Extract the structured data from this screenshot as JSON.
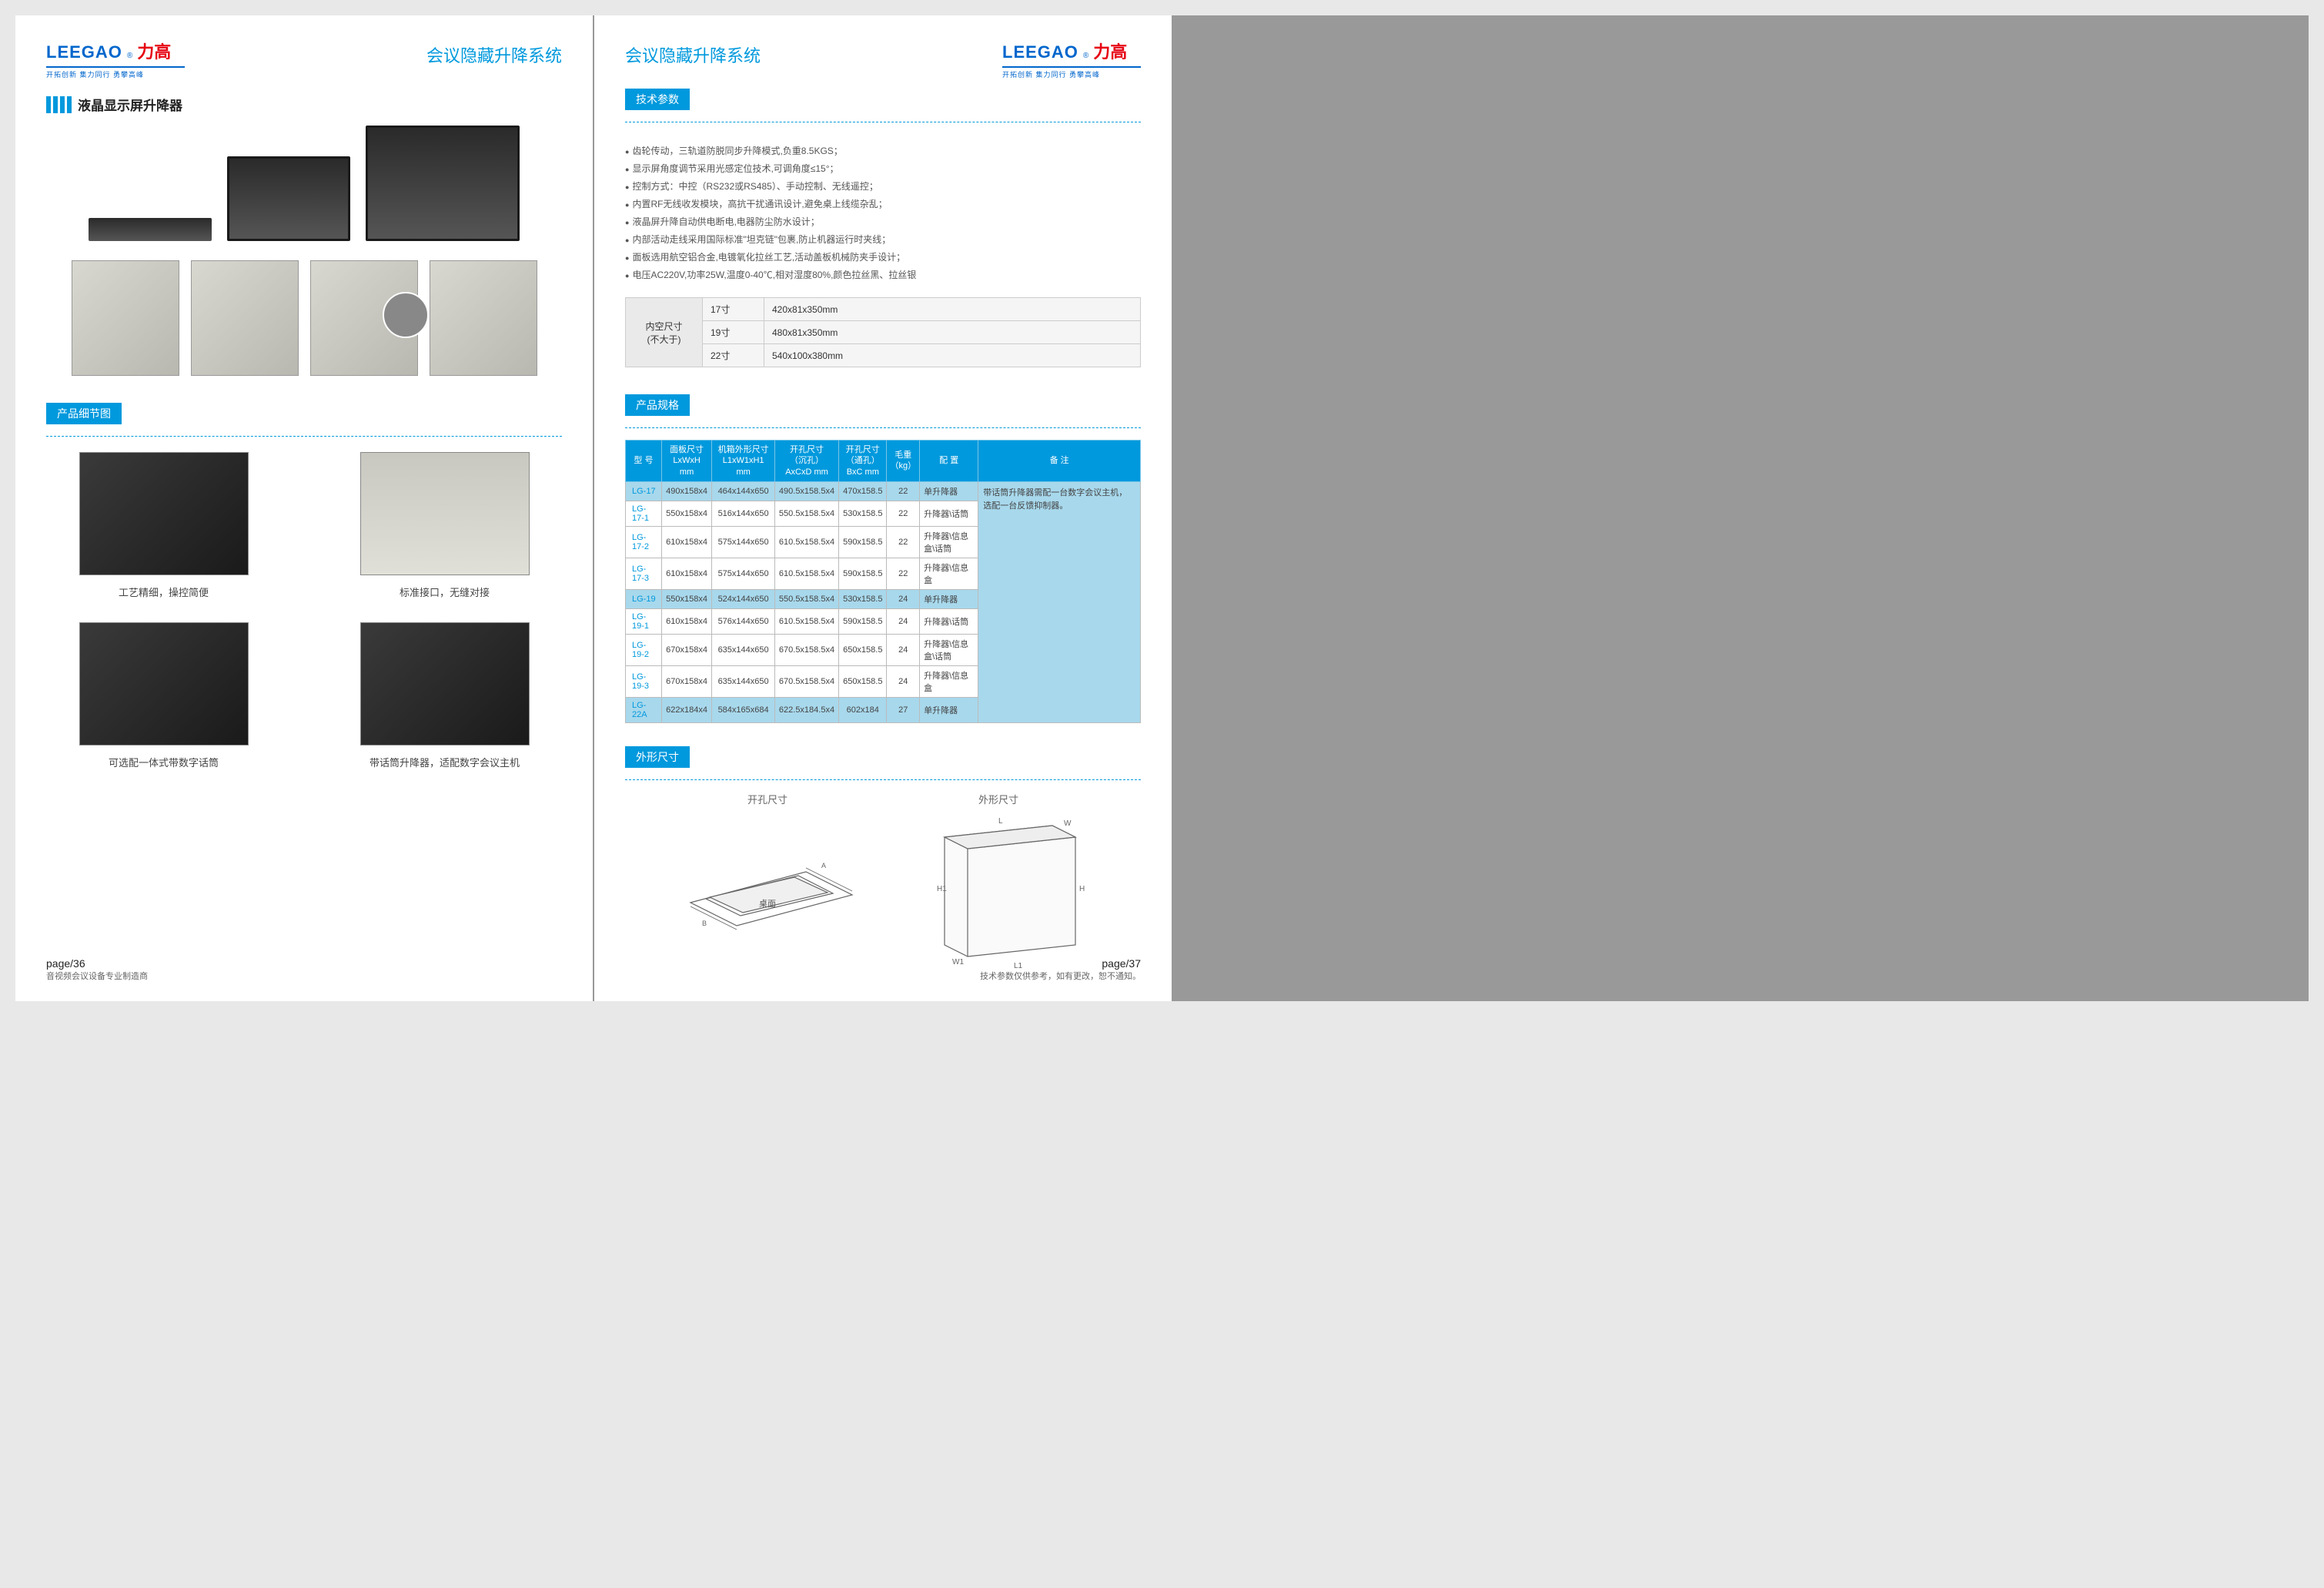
{
  "brand": {
    "en": "LEEGAO",
    "cn": "力高",
    "tagline": "开拓创新 集力同行 勇攀高峰"
  },
  "system_title": "会议隐藏升降系统",
  "left_page": {
    "heading": "液晶显示屏升降器",
    "section_detail": "产品细节图",
    "captions": {
      "c1": "工艺精细，操控简便",
      "c2": "标准接口，无缝对接",
      "c3": "可选配一体式带数字话筒",
      "c4": "带话筒升降器，适配数字会议主机"
    },
    "footer_page": "page/36",
    "footer_text": "音视频会议设备专业制造商"
  },
  "right_page": {
    "tech_title": "技术参数",
    "tech_specs": [
      "齿轮传动，三轨道防脱同步升降模式,负重8.5KGS；",
      "显示屏角度调节采用光感定位技术,可调角度≤15°；",
      "控制方式：中控（RS232或RS485）、手动控制、无线遥控；",
      "内置RF无线收发模块，高抗干扰通讯设计,避免桌上线缆杂乱；",
      "液晶屏升降自动供电断电,电器防尘防水设计；",
      "内部活动走线采用国际标准\"坦克链\"包裹,防止机器运行时夹线；",
      "面板选用航空铝合金,电镀氧化拉丝工艺,活动盖板机械防夹手设计；",
      "电压AC220V,功率25W,温度0-40℃,相对湿度80%,颜色拉丝黑、拉丝银"
    ],
    "size_label": "内空尺寸\n(不大于)",
    "size_rows": [
      {
        "inch": "17寸",
        "val": "420x81x350mm"
      },
      {
        "inch": "19寸",
        "val": "480x81x350mm"
      },
      {
        "inch": "22寸",
        "val": "540x100x380mm"
      }
    ],
    "spec_title": "产品规格",
    "spec_headers": [
      "型 号",
      "面板尺寸\nLxWxH mm",
      "机箱外形尺寸\nL1xW1xH1 mm",
      "开孔尺寸\n（沉孔）\nAxCxD mm",
      "开孔尺寸\n（通孔）\nBxC mm",
      "毛重\n（kg）",
      "配 置",
      "备 注"
    ],
    "spec_rows": [
      {
        "hl": true,
        "model": "LG-17",
        "panel": "490x158x4",
        "box": "464x144x650",
        "hole1": "490.5x158.5x4",
        "hole2": "470x158.5",
        "wt": "22",
        "cfg": "单升降器"
      },
      {
        "hl": false,
        "model": "LG-17-1",
        "panel": "550x158x4",
        "box": "516x144x650",
        "hole1": "550.5x158.5x4",
        "hole2": "530x158.5",
        "wt": "22",
        "cfg": "升降器\\话筒"
      },
      {
        "hl": false,
        "model": "LG-17-2",
        "panel": "610x158x4",
        "box": "575x144x650",
        "hole1": "610.5x158.5x4",
        "hole2": "590x158.5",
        "wt": "22",
        "cfg": "升降器\\信息盒\\话筒"
      },
      {
        "hl": false,
        "model": "LG-17-3",
        "panel": "610x158x4",
        "box": "575x144x650",
        "hole1": "610.5x158.5x4",
        "hole2": "590x158.5",
        "wt": "22",
        "cfg": "升降器\\信息盒"
      },
      {
        "hl": true,
        "model": "LG-19",
        "panel": "550x158x4",
        "box": "524x144x650",
        "hole1": "550.5x158.5x4",
        "hole2": "530x158.5",
        "wt": "24",
        "cfg": "单升降器"
      },
      {
        "hl": false,
        "model": "LG-19-1",
        "panel": "610x158x4",
        "box": "576x144x650",
        "hole1": "610.5x158.5x4",
        "hole2": "590x158.5",
        "wt": "24",
        "cfg": "升降器\\话筒"
      },
      {
        "hl": false,
        "model": "LG-19-2",
        "panel": "670x158x4",
        "box": "635x144x650",
        "hole1": "670.5x158.5x4",
        "hole2": "650x158.5",
        "wt": "24",
        "cfg": "升降器\\信息盒\\话筒"
      },
      {
        "hl": false,
        "model": "LG-19-3",
        "panel": "670x158x4",
        "box": "635x144x650",
        "hole1": "670.5x158.5x4",
        "hole2": "650x158.5",
        "wt": "24",
        "cfg": "升降器\\信息盒"
      },
      {
        "hl": true,
        "model": "LG-22A",
        "panel": "622x184x4",
        "box": "584x165x684",
        "hole1": "622.5x184.5x4",
        "hole2": "602x184",
        "wt": "27",
        "cfg": "单升降器"
      }
    ],
    "spec_remark": "带话筒升降器需配一台数字会议主机，选配一台反馈抑制器。",
    "dim_title": "外形尺寸",
    "dim_hole": "开孔尺寸",
    "dim_outer": "外形尺寸",
    "dim_desktop": "桌面",
    "footer_page": "page/37",
    "footer_text": "技术参数仅供参考，如有更改，恕不通知。"
  },
  "colors": {
    "brand_blue": "#0066cc",
    "brand_red": "#e60012",
    "accent": "#0099dd",
    "table_header": "#0099dd",
    "row_highlight": "#a8d8ec"
  }
}
